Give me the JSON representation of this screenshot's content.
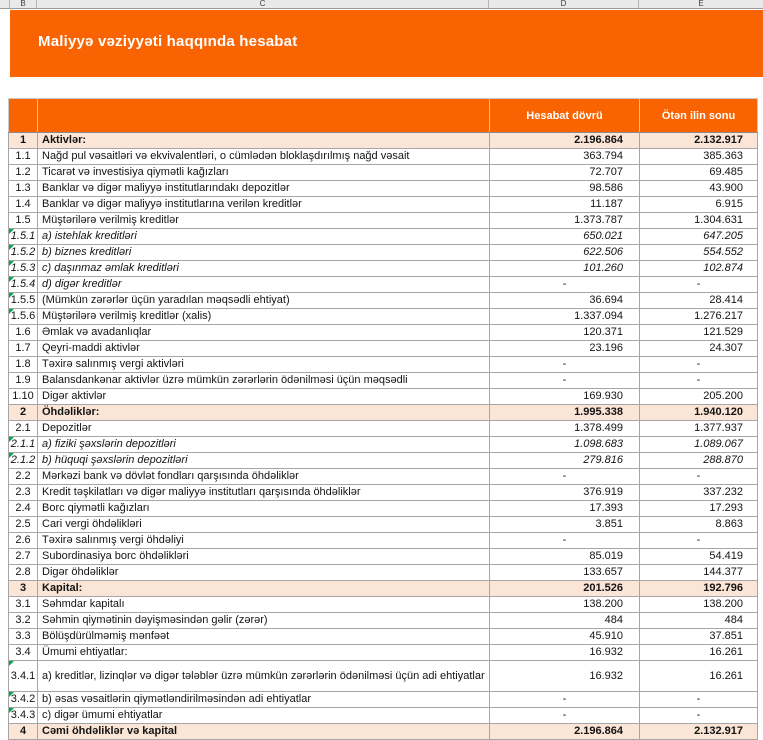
{
  "spreadsheet": {
    "column_letters": [
      "B",
      "C",
      "D",
      "E"
    ]
  },
  "banner": {
    "title": "Maliyyə vəziyyəti haqqında hesabat"
  },
  "colors": {
    "accent_orange": "#f96302",
    "total_row_peach": "#fbe5d6",
    "grid_line": "#a6a6a6",
    "comment_marker_green": "#00a650"
  },
  "table": {
    "columns": [
      "",
      "",
      "Hesabat dövrü",
      "Ötən ilin sonu"
    ],
    "rows": [
      {
        "num": "1",
        "label": "Aktivlər:",
        "current": "2.196.864",
        "previous": "2.132.917",
        "total": true
      },
      {
        "num": "1.1",
        "label": "Nağd pul vəsaitləri və  ekvivalentləri, o cümlədən bloklaşdırılmış nağd vəsait",
        "current": "363.794",
        "previous": "385.363"
      },
      {
        "num": "1.2",
        "label": "Ticarət və investisiya qiymətli kağızları",
        "current": "72.707",
        "previous": "69.485"
      },
      {
        "num": "1.3",
        "label": "Banklar və digər maliyyə institutlarındakı depozitlər",
        "current": "98.586",
        "previous": "43.900"
      },
      {
        "num": "1.4",
        "label": "Banklar və digər maliyyə institutlarına verilən kreditlər",
        "current": "11.187",
        "previous": "6.915"
      },
      {
        "num": "1.5",
        "label": "Müştərilərə verilmiş kreditlər",
        "current": "1.373.787",
        "previous": "1.304.631"
      },
      {
        "num": "1.5.1",
        "label": "a) istehlak kreditləri",
        "current": "650.021",
        "previous": "647.205",
        "italic": true,
        "green": true
      },
      {
        "num": "1.5.2",
        "label": "b) biznes kreditləri",
        "current": "622.506",
        "previous": "554.552",
        "italic": true,
        "green": true
      },
      {
        "num": "1.5.3",
        "label": "c) daşınmaz əmlak kreditləri",
        "current": "101.260",
        "previous": "102.874",
        "italic": true,
        "green": true
      },
      {
        "num": "1.5.4",
        "label": "d) digər kreditlər",
        "current": "-",
        "previous": "-",
        "italic": true,
        "green": true
      },
      {
        "num": "1.5.5",
        "label": "(Mümkün zərərlər üçün yaradılan məqsədli ehtiyat)",
        "current": "36.694",
        "previous": "28.414",
        "green": true
      },
      {
        "num": "1.5.6",
        "label": "Müştərilərə verilmiş kreditlər (xalis)",
        "current": "1.337.094",
        "previous": "1.276.217",
        "green": true
      },
      {
        "num": "1.6",
        "label": "Əmlak və avadanlıqlar",
        "current": "120.371",
        "previous": "121.529"
      },
      {
        "num": "1.7",
        "label": "Qeyri-maddi aktivlər",
        "current": "23.196",
        "previous": "24.307"
      },
      {
        "num": "1.8",
        "label": "Təxirə salınmış vergi aktivləri",
        "current": "-",
        "previous": "-"
      },
      {
        "num": "1.9",
        "label": "Balansdankənar aktivlər üzrə mümkün zərərlərin ödənilməsi üçün məqsədli",
        "current": "-",
        "previous": "-"
      },
      {
        "num": "1.10",
        "label": "Digər aktivlər",
        "current": "169.930",
        "previous": "205.200"
      },
      {
        "num": "2",
        "label": "Öhdəliklər:",
        "current": "1.995.338",
        "previous": "1.940.120",
        "total": true
      },
      {
        "num": "2.1",
        "label": "Depozitlər",
        "current": "1.378.499",
        "previous": "1.377.937"
      },
      {
        "num": "2.1.1",
        "label": "a) fiziki şəxslərin depozitləri",
        "current": "1.098.683",
        "previous": "1.089.067",
        "italic": true,
        "green": true
      },
      {
        "num": "2.1.2",
        "label": "b) hüquqi şəxslərin depozitləri",
        "current": "279.816",
        "previous": "288.870",
        "italic": true,
        "green": true
      },
      {
        "num": "2.2",
        "label": "Mərkəzi bank və dövlət fondları qarşısında öhdəliklər",
        "current": "-",
        "previous": "-"
      },
      {
        "num": "2.3",
        "label": "Kredit təşkilatları və digər maliyyə institutları qarşısında öhdəliklər",
        "current": "376.919",
        "previous": "337.232"
      },
      {
        "num": "2.4",
        "label": "Borc qiymətli kağızları",
        "current": "17.393",
        "previous": "17.293"
      },
      {
        "num": "2.5",
        "label": "Cari vergi öhdəlikləri",
        "current": "3.851",
        "previous": "8.863"
      },
      {
        "num": "2.6",
        "label": "Təxirə salınmış vergi öhdəliyi",
        "current": "-",
        "previous": "-"
      },
      {
        "num": "2.7",
        "label": "Subordinasiya borc öhdəlikləri",
        "current": "85.019",
        "previous": "54.419"
      },
      {
        "num": "2.8",
        "label": "Digər öhdəliklər",
        "current": "133.657",
        "previous": "144.377"
      },
      {
        "num": "3",
        "label": "Kapital:",
        "current": "201.526",
        "previous": "192.796",
        "total": true
      },
      {
        "num": "3.1",
        "label": "Səhmdar kapitalı",
        "current": "138.200",
        "previous": "138.200"
      },
      {
        "num": "3.2",
        "label": "Səhmin qiymətinin dəyişməsindən gəlir (zərər)",
        "current": "484",
        "previous": "484"
      },
      {
        "num": "3.3",
        "label": "Bölüşdürülməmiş mənfəət",
        "current": "45.910",
        "previous": "37.851"
      },
      {
        "num": "3.4",
        "label": "Ümumi ehtiyatlar:",
        "current": "16.932",
        "previous": "16.261"
      },
      {
        "num": "3.4.1",
        "label": "a) kreditlər, lizinqlər və digər tələblər üzrə mümkün zərərlərin ödənilməsi üçün adi ehtiyatlar",
        "current": "16.932",
        "previous": "16.261",
        "green": true,
        "tall": true
      },
      {
        "num": "3.4.2",
        "label": "b) əsas vəsaitlərin qiymətləndirilməsindən adi ehtiyatlar",
        "current": "-",
        "previous": "-",
        "green": true
      },
      {
        "num": "3.4.3",
        "label": "c) digər ümumi ehtiyatlar",
        "current": "-",
        "previous": "-",
        "green": true
      },
      {
        "num": "4",
        "label": "Cəmi öhdəliklər və kapital",
        "current": "2.196.864",
        "previous": "2.132.917",
        "total": true
      }
    ]
  }
}
